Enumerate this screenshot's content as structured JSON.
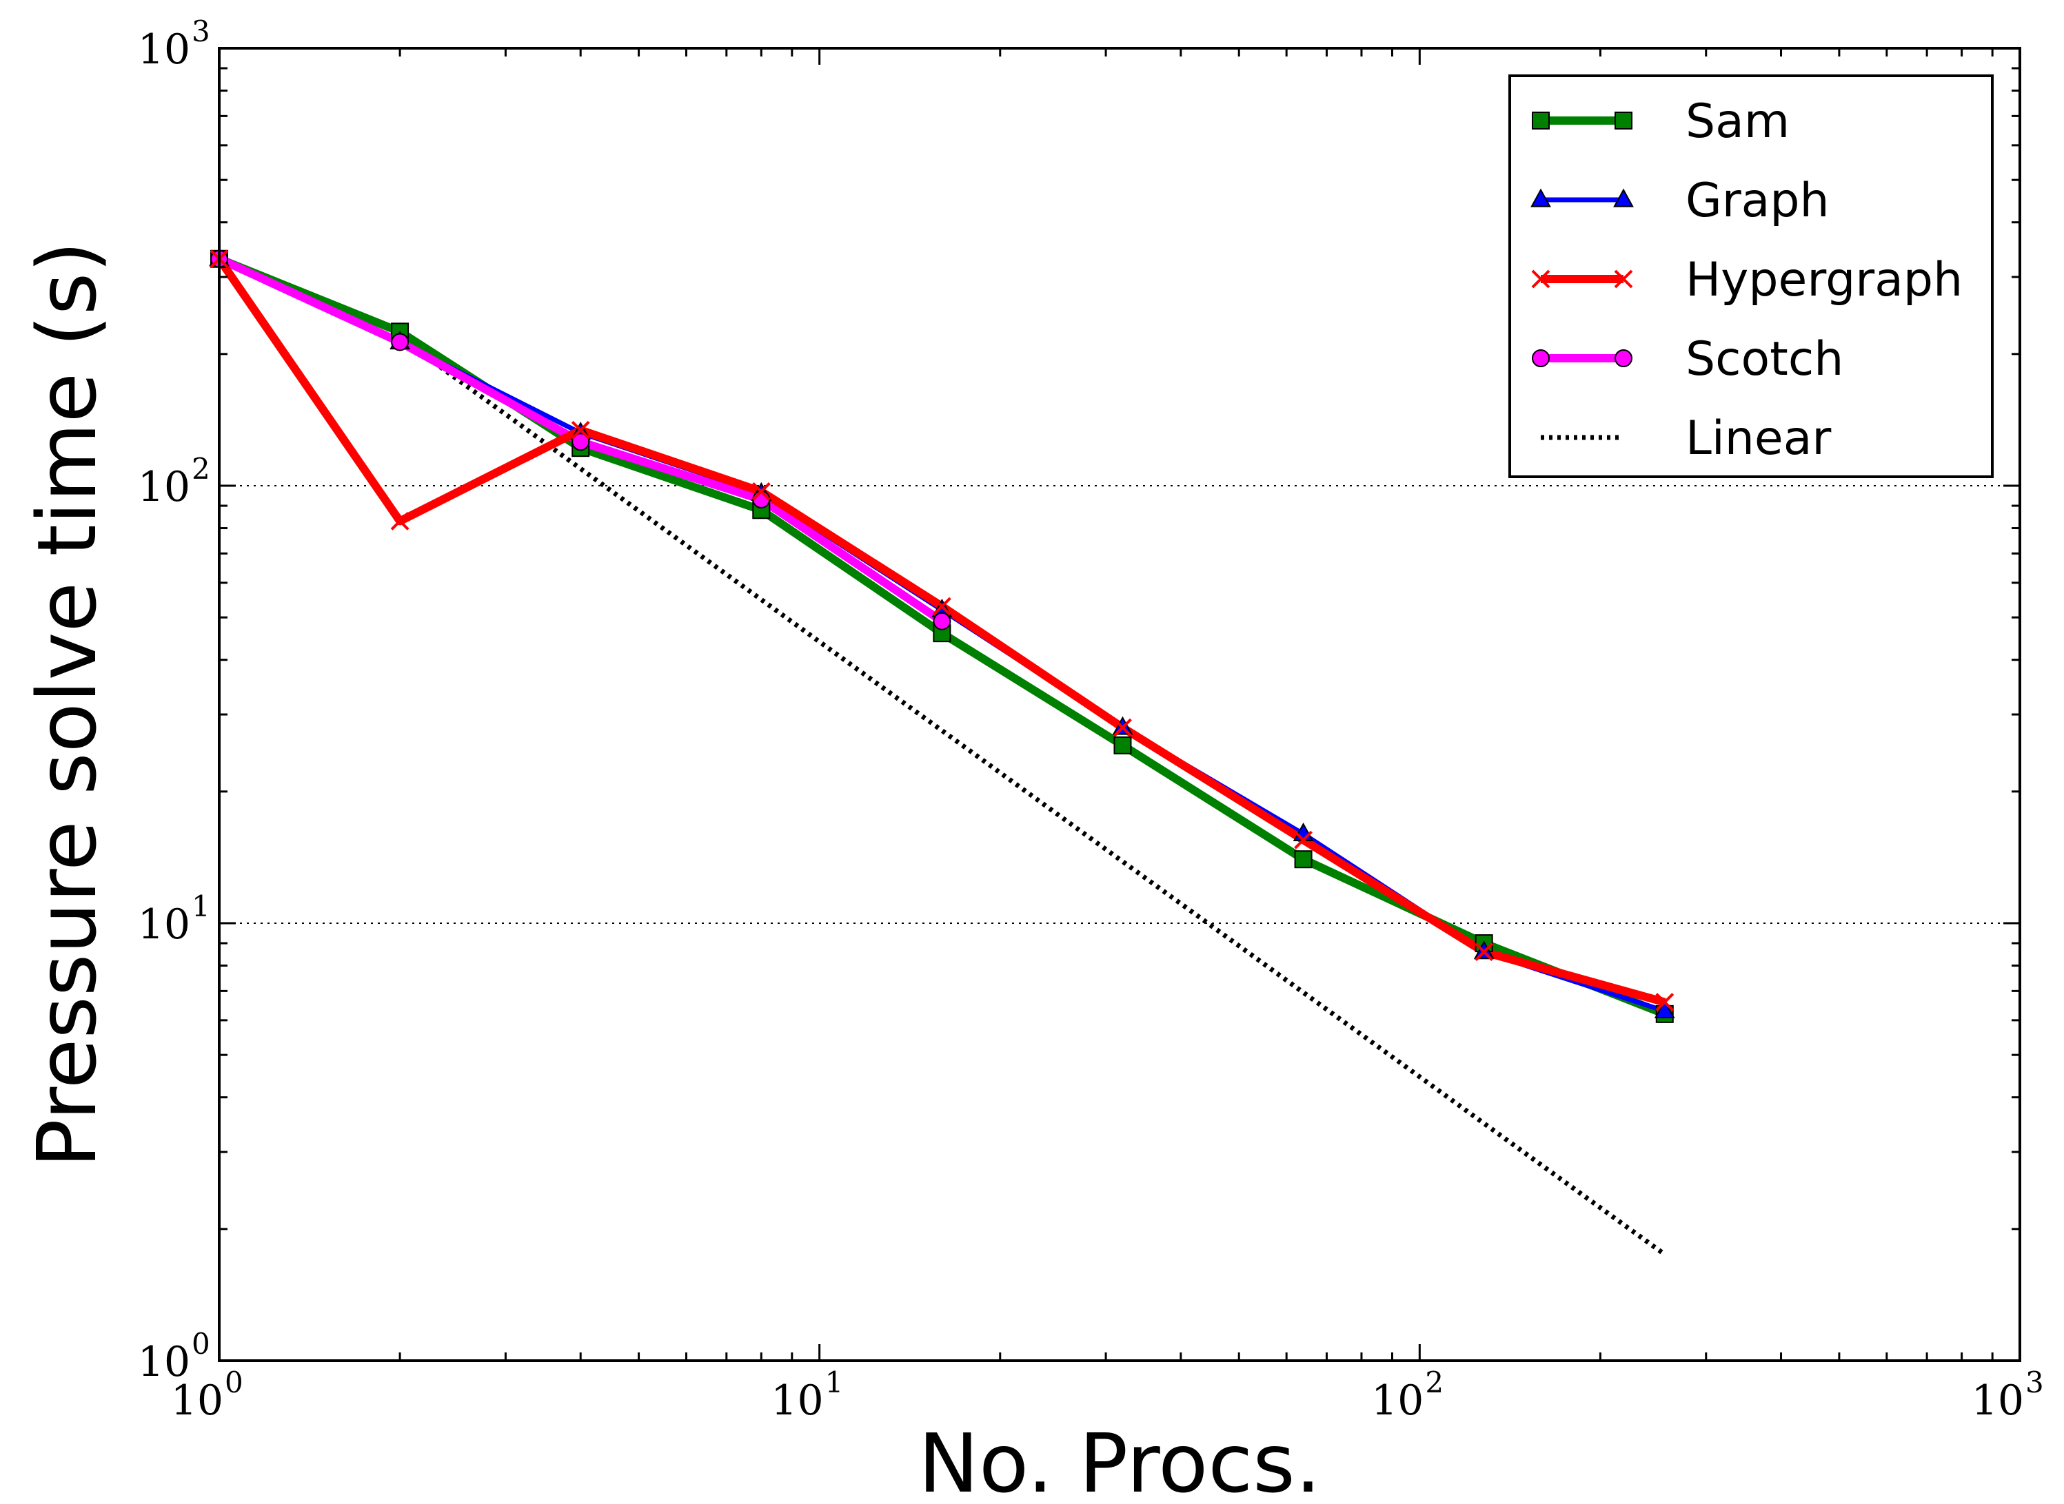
{
  "chart_data": {
    "type": "line",
    "xlabel": "No. Procs.",
    "ylabel": "Pressure solve time (s)",
    "xscale": "log",
    "yscale": "log",
    "xlim": [
      1,
      1000
    ],
    "ylim": [
      1,
      1000
    ],
    "x_ticks": [
      {
        "base": "10",
        "exp": "0",
        "value": 1
      },
      {
        "base": "10",
        "exp": "1",
        "value": 10
      },
      {
        "base": "10",
        "exp": "2",
        "value": 100
      },
      {
        "base": "10",
        "exp": "3",
        "value": 1000
      }
    ],
    "y_ticks": [
      {
        "base": "10",
        "exp": "0",
        "value": 1
      },
      {
        "base": "10",
        "exp": "1",
        "value": 10
      },
      {
        "base": "10",
        "exp": "2",
        "value": 100
      },
      {
        "base": "10",
        "exp": "3",
        "value": 1000
      }
    ],
    "grid": "horizontal dotted lines at major y ticks",
    "legend_position": "top-right",
    "x": [
      1,
      2,
      4,
      8,
      16,
      32,
      64,
      128,
      256
    ],
    "series": [
      {
        "name": "Sam",
        "color": "#008000",
        "marker": "square",
        "line_width": 12,
        "values": [
          330,
          225,
          122,
          88,
          46,
          25.5,
          14,
          9,
          6.2
        ]
      },
      {
        "name": "Graph",
        "color": "#0000ff",
        "marker": "triangle",
        "line_width": 7,
        "values": [
          330,
          213,
          132,
          96,
          52,
          28,
          16,
          8.6,
          6.3
        ]
      },
      {
        "name": "Hypergraph",
        "color": "#ff0000",
        "marker": "x",
        "line_width": 12,
        "values": [
          330,
          83,
          134,
          97,
          53,
          28,
          15.5,
          8.6,
          6.6
        ]
      },
      {
        "name": "Scotch",
        "color": "#ff00ff",
        "marker": "circle",
        "line_width": 12,
        "values": [
          330,
          213,
          126,
          93,
          49,
          null,
          null,
          null,
          null
        ]
      },
      {
        "name": "Linear",
        "color": "#000000",
        "marker": "none",
        "line_style": "dotted",
        "line_width": 7,
        "x": [
          2,
          256
        ],
        "values": [
          218,
          1.75
        ]
      }
    ]
  }
}
